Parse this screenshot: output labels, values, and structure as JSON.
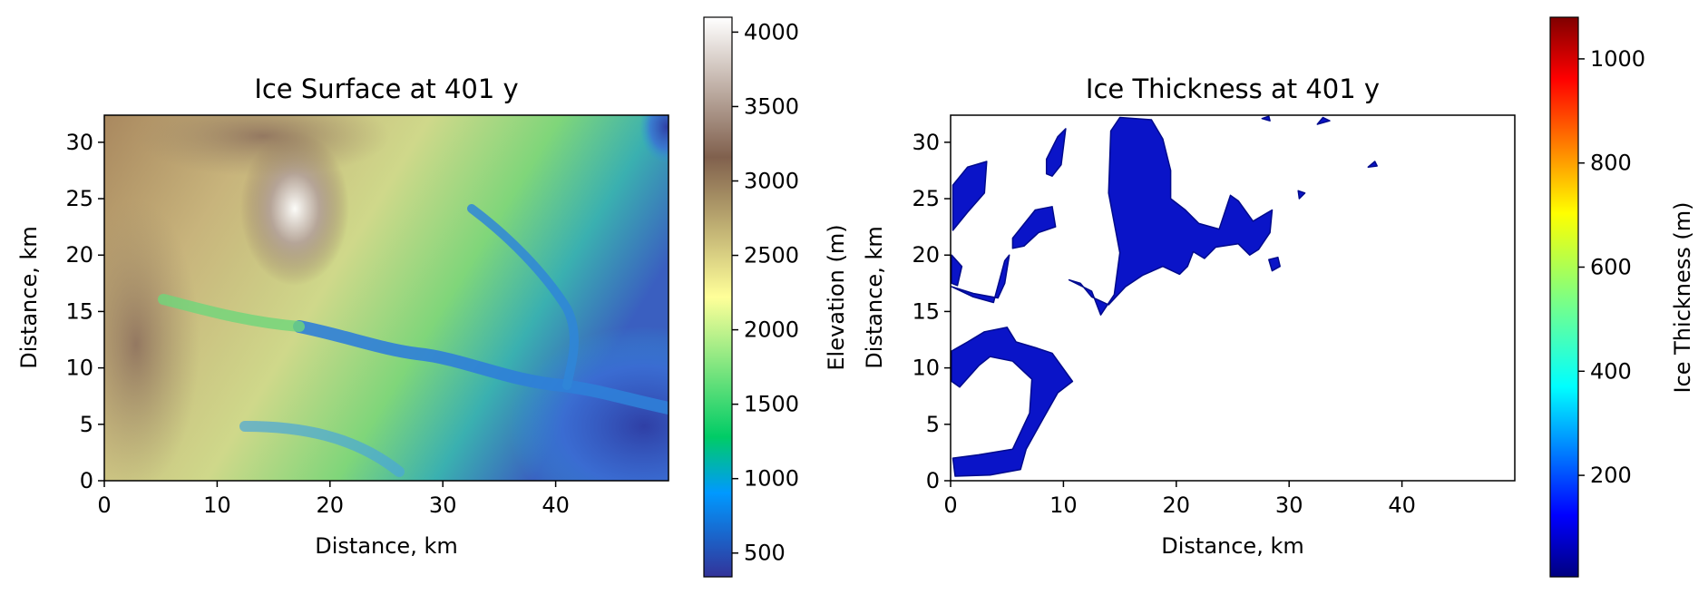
{
  "chart_data": [
    {
      "type": "heatmap",
      "title": "Ice Surface at 401 y",
      "xlabel": "Distance, km",
      "ylabel": "Distance, km",
      "xlim": [
        0,
        50
      ],
      "ylim": [
        0,
        32.4
      ],
      "xticks": [
        0,
        10,
        20,
        30,
        40
      ],
      "yticks": [
        0,
        5,
        10,
        15,
        20,
        25,
        30
      ],
      "colormap": "terrain",
      "colorbar": {
        "label": "Elevation (m)",
        "range": [
          340,
          4100
        ],
        "ticks": [
          500,
          1000,
          1500,
          2000,
          2500,
          3000,
          3500,
          4000
        ],
        "stops": [
          {
            "v": 0.0,
            "c": "#333399"
          },
          {
            "v": 0.15,
            "c": "#0099ff"
          },
          {
            "v": 0.25,
            "c": "#00cc66"
          },
          {
            "v": 0.5,
            "c": "#ffff99"
          },
          {
            "v": 0.75,
            "c": "#80604d"
          },
          {
            "v": 1.0,
            "c": "#ffffff"
          }
        ]
      },
      "grid": false
    },
    {
      "type": "heatmap",
      "title": "Ice Thickness at 401 y",
      "xlabel": "Distance, km",
      "ylabel": "Distance, km",
      "xlim": [
        0,
        50
      ],
      "ylim": [
        0,
        32.4
      ],
      "xticks": [
        0,
        10,
        20,
        30,
        40
      ],
      "yticks": [
        0,
        5,
        10,
        15,
        20,
        25,
        30
      ],
      "colormap": "jet",
      "ice_color": "#0a14c8",
      "ice_regions": [
        [
          [
            0.2,
            26.2
          ],
          [
            1.5,
            27.8
          ],
          [
            3.2,
            28.3
          ],
          [
            3.0,
            25.5
          ],
          [
            1.5,
            23.8
          ],
          [
            0.2,
            22.2
          ]
        ],
        [
          [
            0.1,
            20.0
          ],
          [
            1.0,
            19.0
          ],
          [
            0.6,
            17.3
          ],
          [
            0.1,
            17.5
          ]
        ],
        [
          [
            0.1,
            17.2
          ],
          [
            2.0,
            16.6
          ],
          [
            4.2,
            16.2
          ],
          [
            4.8,
            17.5
          ],
          [
            5.2,
            20.0
          ],
          [
            4.8,
            19.5
          ],
          [
            3.8,
            15.8
          ],
          [
            2.0,
            16.3
          ]
        ],
        [
          [
            5.5,
            21.5
          ],
          [
            7.5,
            24.0
          ],
          [
            9.0,
            24.3
          ],
          [
            9.3,
            22.5
          ],
          [
            7.8,
            22.0
          ],
          [
            6.5,
            20.8
          ],
          [
            5.5,
            20.6
          ]
        ],
        [
          [
            8.5,
            28.5
          ],
          [
            9.5,
            30.5
          ],
          [
            10.2,
            31.2
          ],
          [
            9.8,
            28.0
          ],
          [
            9.0,
            27.0
          ],
          [
            8.5,
            27.2
          ]
        ],
        [
          [
            0.1,
            11.5
          ],
          [
            1.5,
            12.3
          ],
          [
            3.0,
            13.2
          ],
          [
            5.0,
            13.6
          ],
          [
            5.8,
            12.3
          ],
          [
            7.5,
            11.8
          ],
          [
            9.0,
            11.3
          ],
          [
            10.8,
            8.8
          ],
          [
            9.5,
            7.8
          ],
          [
            8.2,
            5.5
          ],
          [
            6.7,
            2.8
          ],
          [
            6.2,
            1.0
          ],
          [
            3.5,
            0.5
          ],
          [
            0.4,
            0.4
          ],
          [
            0.2,
            2.0
          ],
          [
            2.5,
            2.3
          ],
          [
            5.5,
            2.8
          ],
          [
            7.0,
            6.0
          ],
          [
            7.2,
            9.0
          ],
          [
            5.5,
            10.6
          ],
          [
            3.5,
            11.0
          ],
          [
            2.5,
            10.2
          ],
          [
            0.8,
            8.3
          ],
          [
            0.1,
            8.8
          ]
        ],
        [
          [
            10.5,
            17.8
          ],
          [
            12.5,
            16.8
          ],
          [
            13.3,
            14.7
          ],
          [
            14.5,
            16.5
          ],
          [
            15.0,
            20.2
          ],
          [
            14.0,
            25.5
          ],
          [
            14.2,
            31.0
          ],
          [
            15.0,
            32.2
          ],
          [
            17.8,
            32.0
          ],
          [
            18.8,
            30.3
          ],
          [
            19.5,
            27.5
          ],
          [
            19.5,
            25.0
          ],
          [
            20.8,
            24.0
          ],
          [
            22.0,
            22.8
          ],
          [
            23.8,
            22.3
          ],
          [
            24.8,
            25.3
          ],
          [
            25.5,
            24.8
          ],
          [
            26.8,
            23.0
          ],
          [
            28.5,
            24.0
          ],
          [
            28.3,
            22.0
          ],
          [
            27.3,
            20.5
          ],
          [
            26.5,
            20.0
          ],
          [
            25.5,
            21.0
          ],
          [
            23.5,
            20.7
          ],
          [
            22.5,
            19.7
          ],
          [
            21.5,
            20.3
          ],
          [
            21.0,
            19.0
          ],
          [
            20.3,
            18.3
          ],
          [
            18.8,
            19.0
          ],
          [
            17.0,
            18.2
          ],
          [
            15.5,
            17.2
          ],
          [
            14.0,
            15.6
          ],
          [
            12.5,
            16.3
          ],
          [
            11.5,
            17.5
          ]
        ],
        [
          [
            28.2,
            19.6
          ],
          [
            29.0,
            19.8
          ],
          [
            29.2,
            19.0
          ],
          [
            28.5,
            18.6
          ]
        ],
        [
          [
            30.8,
            25.7
          ],
          [
            31.4,
            25.5
          ],
          [
            30.9,
            25.0
          ]
        ],
        [
          [
            37.0,
            27.8
          ],
          [
            37.6,
            28.3
          ],
          [
            37.8,
            27.9
          ]
        ],
        [
          [
            32.5,
            31.6
          ],
          [
            33.0,
            32.2
          ],
          [
            33.6,
            31.9
          ]
        ],
        [
          [
            27.6,
            32.1
          ],
          [
            28.2,
            32.3
          ],
          [
            28.3,
            31.9
          ]
        ]
      ],
      "colorbar": {
        "label": "Ice Thickness (m)",
        "range": [
          5,
          1080
        ],
        "ticks": [
          200,
          400,
          600,
          800,
          1000
        ],
        "stops": [
          {
            "v": 0.0,
            "c": "#000080"
          },
          {
            "v": 0.11,
            "c": "#0000ff"
          },
          {
            "v": 0.34,
            "c": "#00ffff"
          },
          {
            "v": 0.5,
            "c": "#80ff80"
          },
          {
            "v": 0.65,
            "c": "#ffff00"
          },
          {
            "v": 0.89,
            "c": "#ff0000"
          },
          {
            "v": 1.0,
            "c": "#800000"
          }
        ]
      },
      "grid": false
    }
  ]
}
